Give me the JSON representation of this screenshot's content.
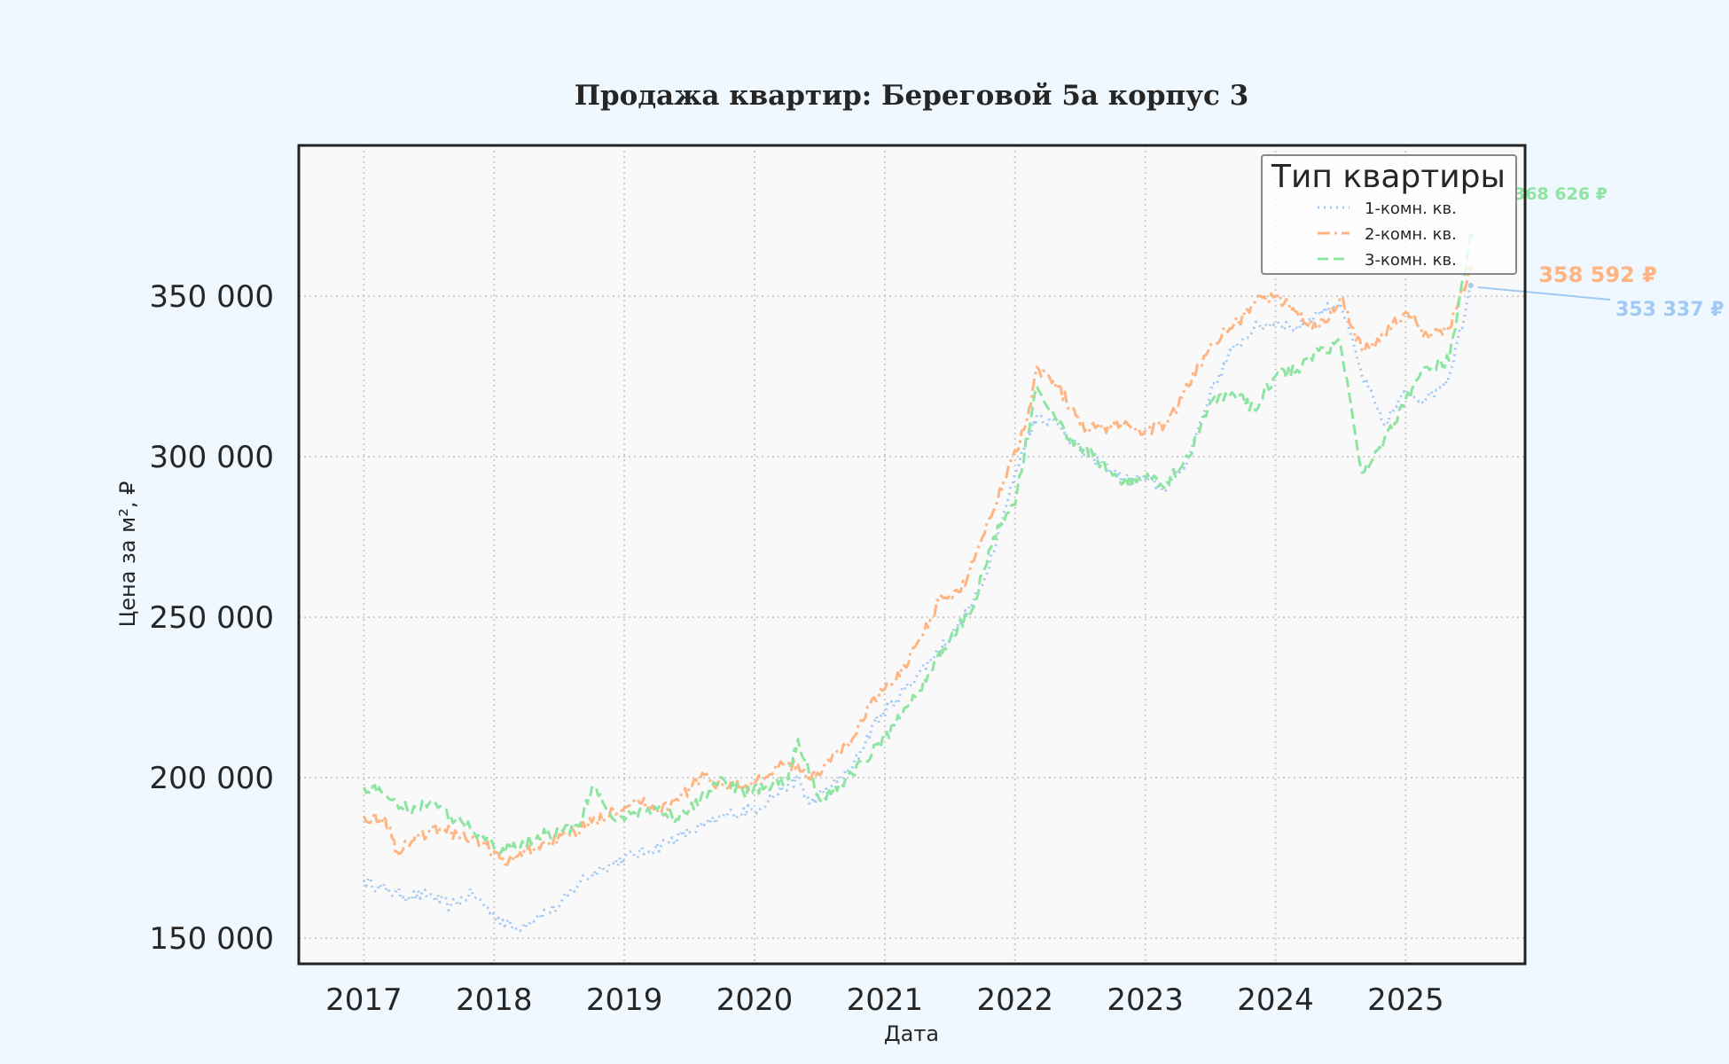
{
  "chart_data": {
    "type": "line",
    "title": "Продажа квартир: Береговой 5а корпус 3",
    "xlabel": "Дата",
    "ylabel": "Цена за м², ₽",
    "x_ticks": [
      "2017",
      "2018",
      "2019",
      "2020",
      "2021",
      "2022",
      "2023",
      "2024",
      "2025"
    ],
    "y_ticks": [
      "150 000",
      "200 000",
      "250 000",
      "300 000",
      "350 000"
    ],
    "y_tick_values": [
      150000,
      200000,
      250000,
      300000,
      350000
    ],
    "xlim": [
      "2016-07",
      "2025-12"
    ],
    "ylim": [
      142000,
      397000
    ],
    "grid": true,
    "legend": {
      "title": "Тип квартиры",
      "placement": "top-right"
    },
    "series": [
      {
        "name": "1-комн. кв.",
        "color": "#a1c9f4",
        "dash": "dotted",
        "last_label": "353 337 ₽",
        "points": [
          [
            "2017-01",
            168000
          ],
          [
            "2017-03",
            165000
          ],
          [
            "2017-05",
            163000
          ],
          [
            "2017-07",
            163500
          ],
          [
            "2017-09",
            160000
          ],
          [
            "2017-11",
            164000
          ],
          [
            "2018-01",
            157000
          ],
          [
            "2018-03",
            153000
          ],
          [
            "2018-05",
            157000
          ],
          [
            "2018-07",
            160000
          ],
          [
            "2018-09",
            168000
          ],
          [
            "2018-11",
            172000
          ],
          [
            "2019-01",
            175000
          ],
          [
            "2019-03",
            177000
          ],
          [
            "2019-05",
            180000
          ],
          [
            "2019-07",
            183000
          ],
          [
            "2019-09",
            186000
          ],
          [
            "2019-11",
            189000
          ],
          [
            "2020-01",
            190000
          ],
          [
            "2020-03",
            195000
          ],
          [
            "2020-05",
            200000
          ],
          [
            "2020-06",
            192000
          ],
          [
            "2020-08",
            197000
          ],
          [
            "2020-10",
            203000
          ],
          [
            "2020-12",
            217000
          ],
          [
            "2021-02",
            224000
          ],
          [
            "2021-04",
            232000
          ],
          [
            "2021-06",
            240000
          ],
          [
            "2021-08",
            248000
          ],
          [
            "2021-10",
            260000
          ],
          [
            "2021-12",
            283000
          ],
          [
            "2022-02",
            305000
          ],
          [
            "2022-03",
            313000
          ],
          [
            "2022-05",
            310000
          ],
          [
            "2022-07",
            302000
          ],
          [
            "2022-09",
            298000
          ],
          [
            "2022-11",
            293000
          ],
          [
            "2023-01",
            293000
          ],
          [
            "2023-03",
            290000
          ],
          [
            "2023-05",
            300000
          ],
          [
            "2023-07",
            320000
          ],
          [
            "2023-09",
            333000
          ],
          [
            "2023-11",
            340000
          ],
          [
            "2024-01",
            342000
          ],
          [
            "2024-03",
            340000
          ],
          [
            "2024-05",
            345000
          ],
          [
            "2024-07",
            348000
          ],
          [
            "2024-09",
            325000
          ],
          [
            "2024-11",
            310000
          ],
          [
            "2025-01",
            320000
          ],
          [
            "2025-03",
            318000
          ],
          [
            "2025-05",
            325000
          ],
          [
            "2025-07",
            353337
          ]
        ]
      },
      {
        "name": "2-комн. кв.",
        "color": "#ffb482",
        "dash": "dashdot",
        "last_label": "358 592 ₽",
        "points": [
          [
            "2017-01",
            188000
          ],
          [
            "2017-03",
            187000
          ],
          [
            "2017-04",
            177000
          ],
          [
            "2017-06",
            182000
          ],
          [
            "2017-08",
            184000
          ],
          [
            "2017-10",
            182000
          ],
          [
            "2017-12",
            180000
          ],
          [
            "2018-02",
            173000
          ],
          [
            "2018-04",
            177000
          ],
          [
            "2018-06",
            180000
          ],
          [
            "2018-08",
            182000
          ],
          [
            "2018-10",
            186000
          ],
          [
            "2018-12",
            190000
          ],
          [
            "2019-02",
            193000
          ],
          [
            "2019-04",
            190000
          ],
          [
            "2019-06",
            193000
          ],
          [
            "2019-08",
            200000
          ],
          [
            "2019-10",
            198000
          ],
          [
            "2019-12",
            197000
          ],
          [
            "2020-02",
            200000
          ],
          [
            "2020-04",
            205000
          ],
          [
            "2020-06",
            200000
          ],
          [
            "2020-08",
            205000
          ],
          [
            "2020-10",
            212000
          ],
          [
            "2020-12",
            225000
          ],
          [
            "2021-02",
            230000
          ],
          [
            "2021-04",
            242000
          ],
          [
            "2021-06",
            255000
          ],
          [
            "2021-08",
            258000
          ],
          [
            "2021-10",
            275000
          ],
          [
            "2021-12",
            293000
          ],
          [
            "2022-02",
            310000
          ],
          [
            "2022-03",
            328000
          ],
          [
            "2022-05",
            322000
          ],
          [
            "2022-07",
            310000
          ],
          [
            "2022-09",
            309000
          ],
          [
            "2022-11",
            310000
          ],
          [
            "2023-01",
            308000
          ],
          [
            "2023-03",
            310000
          ],
          [
            "2023-05",
            322000
          ],
          [
            "2023-07",
            335000
          ],
          [
            "2023-09",
            340000
          ],
          [
            "2023-11",
            348000
          ],
          [
            "2024-01",
            350000
          ],
          [
            "2024-03",
            345000
          ],
          [
            "2024-05",
            340000
          ],
          [
            "2024-07",
            350000
          ],
          [
            "2024-09",
            333000
          ],
          [
            "2024-11",
            338000
          ],
          [
            "2025-01",
            345000
          ],
          [
            "2025-03",
            338000
          ],
          [
            "2025-05",
            340000
          ],
          [
            "2025-07",
            358592
          ]
        ]
      },
      {
        "name": "3-комн. кв.",
        "color": "#8de5a1",
        "dash": "dashed",
        "last_label": "368 626 ₽",
        "points": [
          [
            "2017-01",
            197000
          ],
          [
            "2017-03",
            195000
          ],
          [
            "2017-05",
            190000
          ],
          [
            "2017-07",
            192000
          ],
          [
            "2017-09",
            188000
          ],
          [
            "2017-11",
            184000
          ],
          [
            "2018-01",
            178000
          ],
          [
            "2018-03",
            178000
          ],
          [
            "2018-05",
            182000
          ],
          [
            "2018-07",
            183000
          ],
          [
            "2018-09",
            186000
          ],
          [
            "2018-10",
            197000
          ],
          [
            "2018-12",
            187000
          ],
          [
            "2019-02",
            189000
          ],
          [
            "2019-04",
            190000
          ],
          [
            "2019-06",
            187000
          ],
          [
            "2019-08",
            193000
          ],
          [
            "2019-10",
            200000
          ],
          [
            "2019-12",
            195000
          ],
          [
            "2020-02",
            197000
          ],
          [
            "2020-04",
            200000
          ],
          [
            "2020-05",
            212000
          ],
          [
            "2020-07",
            193000
          ],
          [
            "2020-09",
            198000
          ],
          [
            "2020-11",
            205000
          ],
          [
            "2021-01",
            212000
          ],
          [
            "2021-03",
            222000
          ],
          [
            "2021-05",
            232000
          ],
          [
            "2021-07",
            243000
          ],
          [
            "2021-09",
            252000
          ],
          [
            "2021-11",
            275000
          ],
          [
            "2022-01",
            285000
          ],
          [
            "2022-03",
            322000
          ],
          [
            "2022-05",
            310000
          ],
          [
            "2022-07",
            303000
          ],
          [
            "2022-09",
            298000
          ],
          [
            "2022-11",
            292000
          ],
          [
            "2023-01",
            293000
          ],
          [
            "2023-03",
            292000
          ],
          [
            "2023-05",
            300000
          ],
          [
            "2023-07",
            317000
          ],
          [
            "2023-09",
            320000
          ],
          [
            "2023-11",
            315000
          ],
          [
            "2024-01",
            325000
          ],
          [
            "2024-03",
            327000
          ],
          [
            "2024-05",
            333000
          ],
          [
            "2024-07",
            335000
          ],
          [
            "2024-09",
            295000
          ],
          [
            "2024-11",
            305000
          ],
          [
            "2025-01",
            318000
          ],
          [
            "2025-03",
            328000
          ],
          [
            "2025-05",
            330000
          ],
          [
            "2025-07",
            368626
          ]
        ]
      }
    ]
  }
}
